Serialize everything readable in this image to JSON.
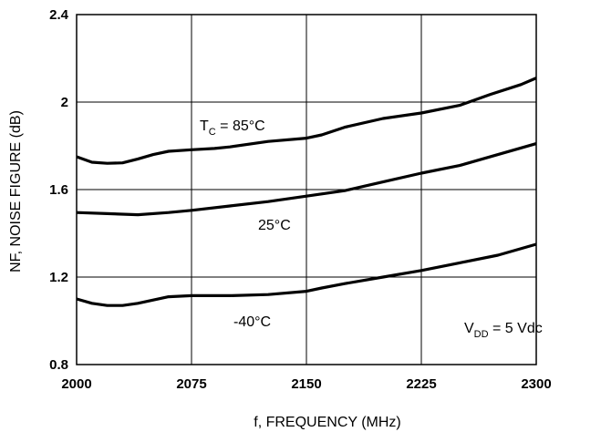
{
  "chart_data": {
    "type": "line",
    "title": "",
    "xlabel": "f, FREQUENCY (MHz)",
    "ylabel": "NF, NOISE FIGURE (dB)",
    "xlim": [
      2000,
      2300
    ],
    "ylim": [
      0.8,
      2.4
    ],
    "xticks": [
      2000,
      2075,
      2150,
      2225,
      2300
    ],
    "xtick_labels": [
      "2000",
      "2075",
      "2150",
      "2225",
      "2300"
    ],
    "yticks": [
      0.8,
      1.2,
      1.6,
      2.0,
      2.4
    ],
    "ytick_labels": [
      "0.8",
      "1.2",
      "1.6",
      "2",
      "2.4"
    ],
    "grid": true,
    "series": [
      {
        "name": "TC = 85°C",
        "x": [
          2000,
          2010,
          2020,
          2030,
          2040,
          2050,
          2060,
          2075,
          2090,
          2100,
          2125,
          2150,
          2160,
          2175,
          2200,
          2225,
          2250,
          2270,
          2290,
          2300
        ],
        "y": [
          1.75,
          1.725,
          1.72,
          1.722,
          1.74,
          1.76,
          1.775,
          1.782,
          1.788,
          1.795,
          1.82,
          1.835,
          1.85,
          1.885,
          1.925,
          1.95,
          1.985,
          2.035,
          2.08,
          2.11
        ]
      },
      {
        "name": "25°C",
        "x": [
          2000,
          2020,
          2040,
          2060,
          2075,
          2100,
          2125,
          2150,
          2175,
          2200,
          2225,
          2250,
          2275,
          2300
        ],
        "y": [
          1.495,
          1.49,
          1.485,
          1.495,
          1.505,
          1.525,
          1.545,
          1.57,
          1.595,
          1.635,
          1.675,
          1.71,
          1.76,
          1.81
        ]
      },
      {
        "name": "-40°C",
        "x": [
          2000,
          2010,
          2020,
          2030,
          2040,
          2050,
          2060,
          2075,
          2100,
          2125,
          2150,
          2160,
          2175,
          2200,
          2225,
          2250,
          2275,
          2300
        ],
        "y": [
          1.1,
          1.08,
          1.07,
          1.07,
          1.08,
          1.095,
          1.11,
          1.115,
          1.115,
          1.12,
          1.135,
          1.15,
          1.17,
          1.2,
          1.23,
          1.265,
          1.3,
          1.35
        ]
      }
    ],
    "annotations": {
      "tc_prefix": "T",
      "tc_sub": "C",
      "tc_rest": " = 85°C",
      "mid": "25°C",
      "low": "-40°C",
      "vdd_prefix": "V",
      "vdd_sub": "DD",
      "vdd_rest": " = 5 Vdc"
    }
  }
}
